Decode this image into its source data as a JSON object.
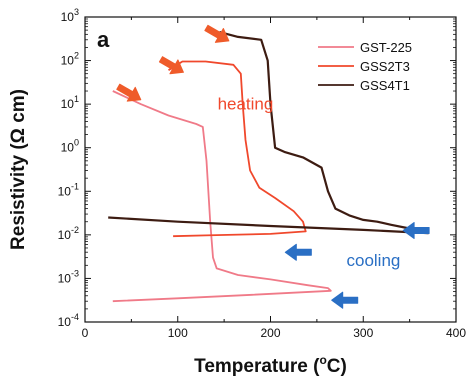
{
  "chart_data": {
    "type": "line",
    "panel_label": "a",
    "xlabel": "Temperature (°C)",
    "ylabel": "Resistivity (Ω cm)",
    "xlim": [
      0,
      400
    ],
    "ylim_log10": [
      -4,
      3
    ],
    "yscale": "log",
    "x_ticks": [
      0,
      100,
      200,
      300,
      400
    ],
    "y_ticks": [
      {
        "exp": -4,
        "label": "10-4"
      },
      {
        "exp": -3,
        "label": "10-3"
      },
      {
        "exp": -2,
        "label": "10-2"
      },
      {
        "exp": -1,
        "label": "10-1"
      },
      {
        "exp": 0,
        "label": "100"
      },
      {
        "exp": 1,
        "label": "101"
      },
      {
        "exp": 2,
        "label": "102"
      },
      {
        "exp": 3,
        "label": "103"
      }
    ],
    "legend_position": "top-right",
    "series": [
      {
        "name": "GST-225",
        "color": "#f07a88",
        "points": [
          [
            30,
            20
          ],
          [
            60,
            10
          ],
          [
            90,
            5.5
          ],
          [
            120,
            3.5
          ],
          [
            127,
            3
          ],
          [
            131,
            0.5
          ],
          [
            135,
            0.02
          ],
          [
            138,
            0.003
          ],
          [
            142,
            0.0017
          ],
          [
            165,
            0.0012
          ],
          [
            200,
            0.00095
          ],
          [
            240,
            0.0007
          ],
          [
            262,
            0.0006
          ],
          [
            265,
            0.00052
          ],
          [
            180,
            0.00042
          ],
          [
            100,
            0.00035
          ],
          [
            30,
            0.0003
          ]
        ]
      },
      {
        "name": "GSS2T3",
        "color": "#f0482c",
        "points": [
          [
            90,
            60
          ],
          [
            105,
            95
          ],
          [
            130,
            95
          ],
          [
            160,
            80
          ],
          [
            168,
            50
          ],
          [
            170,
            10
          ],
          [
            173,
            1.5
          ],
          [
            178,
            0.3
          ],
          [
            188,
            0.12
          ],
          [
            205,
            0.07
          ],
          [
            225,
            0.035
          ],
          [
            235,
            0.02
          ],
          [
            238,
            0.012
          ],
          [
            200,
            0.0105
          ],
          [
            130,
            0.0097
          ],
          [
            95,
            0.0093
          ]
        ]
      },
      {
        "name": "GSS4T1",
        "color": "#3d1c12",
        "points": [
          [
            145,
            450
          ],
          [
            165,
            350
          ],
          [
            190,
            300
          ],
          [
            197,
            100
          ],
          [
            200,
            10
          ],
          [
            205,
            1.0
          ],
          [
            215,
            0.8
          ],
          [
            235,
            0.6
          ],
          [
            255,
            0.35
          ],
          [
            262,
            0.1
          ],
          [
            270,
            0.04
          ],
          [
            285,
            0.028
          ],
          [
            300,
            0.022
          ],
          [
            315,
            0.02
          ],
          [
            330,
            0.017
          ],
          [
            350,
            0.014
          ],
          [
            370,
            0.011
          ],
          [
            300,
            0.013
          ],
          [
            200,
            0.016
          ],
          [
            100,
            0.02
          ],
          [
            25,
            0.025
          ]
        ]
      }
    ],
    "annotations": [
      {
        "text": "heating",
        "color": "#f0482c",
        "x": 173,
        "y_log": 0.88
      },
      {
        "text": "cooling",
        "color": "#2a6fc4",
        "x": 311,
        "y_log": -2.72
      }
    ],
    "arrows": [
      {
        "color": "#ef5b2a",
        "direction": "down-right",
        "x": 48,
        "y_log": 1.25
      },
      {
        "color": "#ef5b2a",
        "direction": "down-right",
        "x": 94,
        "y_log": 1.88
      },
      {
        "color": "#ef5b2a",
        "direction": "down-right",
        "x": 143,
        "y_log": 2.6
      },
      {
        "color": "#2a6fc4",
        "direction": "left",
        "x": 230,
        "y_log": -2.4
      },
      {
        "color": "#2a6fc4",
        "direction": "left",
        "x": 357,
        "y_log": -1.9
      },
      {
        "color": "#2a6fc4",
        "direction": "left",
        "x": 280,
        "y_log": -3.5
      }
    ]
  }
}
